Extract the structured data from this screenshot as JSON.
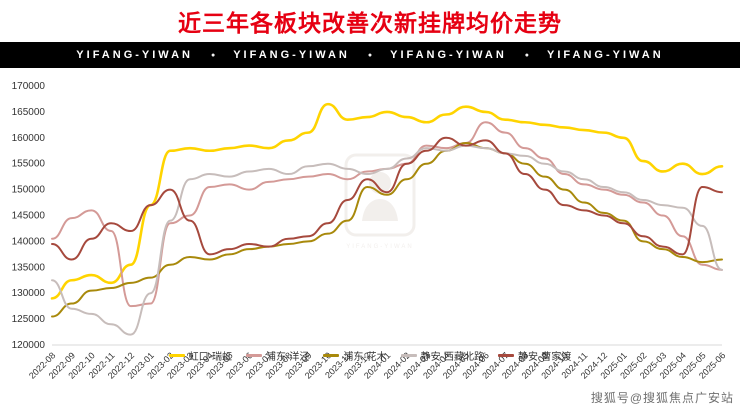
{
  "header": {
    "title": "近三年各板块改善次新挂牌均价走势"
  },
  "banner": {
    "items": [
      "YIFANG-YIWAN",
      "YIFANG-YIWAN",
      "YIFANG-YIWAN",
      "YIFANG-YIWAN"
    ],
    "separator": "●"
  },
  "colors": {
    "title_red": "#e60012",
    "banner_bg": "#000000",
    "axis_text": "#333333",
    "axis_line": "#d8d8d8"
  },
  "footer": {
    "watermark": "搜狐号@搜狐焦点广安站"
  },
  "chart_data": {
    "type": "line",
    "title": "近三年各板块改善次新挂牌均价走势",
    "xlabel": "",
    "ylabel": "",
    "ylim": [
      120000,
      170000
    ],
    "ytick_step": 5000,
    "grid": false,
    "legend_position": "bottom",
    "categories": [
      "2022-08",
      "2022-09",
      "2022-10",
      "2022-11",
      "2022-12",
      "2023-01",
      "2023-02",
      "2023-03",
      "2023-04",
      "2023-05",
      "2023-06",
      "2023-07",
      "2023-08",
      "2023-09",
      "2023-10",
      "2023-11",
      "2023-12",
      "2024-01",
      "2024-02",
      "2024-03",
      "2024-04",
      "2024-05",
      "2024-06",
      "2024-07",
      "2024-08",
      "2024-09",
      "2024-10",
      "2024-11",
      "2024-12",
      "2025-01",
      "2025-02",
      "2025-03",
      "2025-04",
      "2025-05",
      "2025-06"
    ],
    "series": [
      {
        "name": "虹口-瑞虹",
        "color": "#ffd400",
        "values": [
          129000,
          132500,
          133500,
          132000,
          135500,
          147000,
          157500,
          158000,
          157500,
          158000,
          158500,
          158000,
          159500,
          161000,
          166500,
          163500,
          164000,
          165000,
          164000,
          163000,
          164500,
          166000,
          165000,
          163500,
          163000,
          162500,
          162000,
          161500,
          161000,
          160000,
          155500,
          153500,
          155000,
          153000,
          154500
        ]
      },
      {
        "name": "浦东-洋泾",
        "color": "#d49a97",
        "values": [
          140500,
          144500,
          146000,
          142000,
          127500,
          128000,
          143500,
          145000,
          150500,
          151000,
          150000,
          151500,
          152000,
          152500,
          153000,
          152000,
          153500,
          154000,
          155000,
          158500,
          158000,
          159000,
          163000,
          161000,
          158000,
          156000,
          153000,
          151000,
          150000,
          149000,
          147500,
          145000,
          141000,
          135500,
          134500
        ]
      },
      {
        "name": "浦东-花木",
        "color": "#a8890b",
        "values": [
          125500,
          128000,
          130500,
          131000,
          132000,
          133000,
          135500,
          137000,
          136500,
          137500,
          138500,
          139000,
          139500,
          140000,
          141500,
          144000,
          150500,
          149000,
          152000,
          155000,
          157500,
          159000,
          158000,
          157000,
          155000,
          152500,
          150000,
          147500,
          145500,
          144000,
          140000,
          138500,
          137000,
          136000,
          136500
        ]
      },
      {
        "name": "静安-西藏北路",
        "color": "#c7bdbb",
        "values": [
          132500,
          127000,
          126000,
          124000,
          122000,
          130000,
          144000,
          152000,
          153000,
          152500,
          153500,
          154000,
          153000,
          154500,
          155000,
          154000,
          153000,
          154000,
          156000,
          158000,
          157500,
          158500,
          158000,
          157000,
          156500,
          155000,
          153500,
          152000,
          150500,
          149500,
          148000,
          147000,
          146500,
          143000,
          134500
        ]
      },
      {
        "name": "静安-曹家渡",
        "color": "#a6493d",
        "values": [
          139500,
          136500,
          140500,
          143500,
          142000,
          147000,
          150000,
          144000,
          137500,
          138500,
          139500,
          139000,
          140500,
          141000,
          143500,
          148000,
          152000,
          149500,
          155000,
          157500,
          160000,
          158500,
          159500,
          157000,
          153000,
          150000,
          147000,
          146000,
          145000,
          143500,
          141000,
          139000,
          137500,
          150500,
          149500
        ]
      }
    ]
  }
}
